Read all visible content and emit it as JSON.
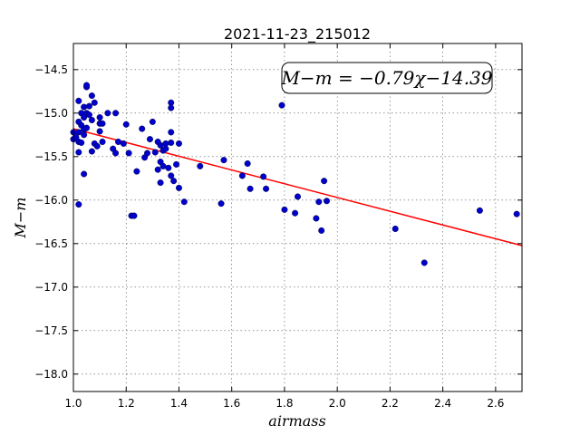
{
  "chart_data": {
    "type": "scatter",
    "title": "2021-11-23_215012",
    "xlabel": "airmass",
    "ylabel": "M−m",
    "annotation": "M−m = −0.79χ−14.39",
    "xlim": [
      1.0,
      2.7
    ],
    "ylim": [
      -18.2,
      -14.2
    ],
    "xticks": [
      "1.0",
      "1.2",
      "1.4",
      "1.6",
      "1.8",
      "2.0",
      "2.2",
      "2.4",
      "2.6"
    ],
    "yticks": [
      "−14.5",
      "−15.0",
      "−15.5",
      "−16.0",
      "−16.5",
      "−17.0",
      "−17.5",
      "−18.0"
    ],
    "grid": true,
    "fit": {
      "slope": -0.79,
      "intercept": -14.39,
      "color": "#ff0000"
    },
    "point_color": "#0000cc",
    "points": [
      [
        1.0,
        -15.22
      ],
      [
        1.0,
        -15.3
      ],
      [
        1.01,
        -15.28
      ],
      [
        1.02,
        -15.1
      ],
      [
        1.02,
        -15.22
      ],
      [
        1.02,
        -15.33
      ],
      [
        1.02,
        -15.45
      ],
      [
        1.02,
        -16.05
      ],
      [
        1.02,
        -14.86
      ],
      [
        1.03,
        -15.0
      ],
      [
        1.03,
        -15.14
      ],
      [
        1.03,
        -15.34
      ],
      [
        1.04,
        -14.93
      ],
      [
        1.04,
        -15.05
      ],
      [
        1.04,
        -15.19
      ],
      [
        1.04,
        -15.25
      ],
      [
        1.04,
        -15.7
      ],
      [
        1.05,
        -14.7
      ],
      [
        1.05,
        -14.68
      ],
      [
        1.05,
        -15.0
      ],
      [
        1.05,
        -15.17
      ],
      [
        1.06,
        -15.02
      ],
      [
        1.06,
        -14.92
      ],
      [
        1.07,
        -14.8
      ],
      [
        1.07,
        -15.08
      ],
      [
        1.07,
        -15.44
      ],
      [
        1.08,
        -14.88
      ],
      [
        1.08,
        -15.35
      ],
      [
        1.09,
        -15.38
      ],
      [
        1.1,
        -15.05
      ],
      [
        1.1,
        -15.12
      ],
      [
        1.1,
        -15.21
      ],
      [
        1.11,
        -15.12
      ],
      [
        1.11,
        -15.33
      ],
      [
        1.13,
        -15.0
      ],
      [
        1.15,
        -15.41
      ],
      [
        1.16,
        -15.0
      ],
      [
        1.16,
        -15.46
      ],
      [
        1.17,
        -15.33
      ],
      [
        1.19,
        -15.35
      ],
      [
        1.2,
        -15.13
      ],
      [
        1.21,
        -15.46
      ],
      [
        1.22,
        -16.18
      ],
      [
        1.23,
        -16.18
      ],
      [
        1.24,
        -15.67
      ],
      [
        1.26,
        -15.18
      ],
      [
        1.27,
        -15.51
      ],
      [
        1.28,
        -15.46
      ],
      [
        1.29,
        -15.3
      ],
      [
        1.3,
        -15.1
      ],
      [
        1.31,
        -15.45
      ],
      [
        1.32,
        -15.65
      ],
      [
        1.32,
        -15.33
      ],
      [
        1.33,
        -15.37
      ],
      [
        1.33,
        -15.56
      ],
      [
        1.33,
        -15.8
      ],
      [
        1.34,
        -15.43
      ],
      [
        1.34,
        -15.61
      ],
      [
        1.35,
        -15.35
      ],
      [
        1.35,
        -15.41
      ],
      [
        1.36,
        -15.63
      ],
      [
        1.37,
        -14.88
      ],
      [
        1.37,
        -14.94
      ],
      [
        1.37,
        -15.22
      ],
      [
        1.37,
        -15.34
      ],
      [
        1.37,
        -15.72
      ],
      [
        1.38,
        -15.78
      ],
      [
        1.39,
        -15.59
      ],
      [
        1.4,
        -15.35
      ],
      [
        1.4,
        -15.86
      ],
      [
        1.42,
        -16.02
      ],
      [
        1.48,
        -15.61
      ],
      [
        1.56,
        -16.04
      ],
      [
        1.57,
        -15.54
      ],
      [
        1.64,
        -15.72
      ],
      [
        1.66,
        -15.58
      ],
      [
        1.67,
        -15.87
      ],
      [
        1.72,
        -15.73
      ],
      [
        1.73,
        -15.87
      ],
      [
        1.79,
        -14.91
      ],
      [
        1.8,
        -16.11
      ],
      [
        1.84,
        -16.15
      ],
      [
        1.85,
        -15.96
      ],
      [
        1.92,
        -16.21
      ],
      [
        1.93,
        -16.02
      ],
      [
        1.94,
        -16.35
      ],
      [
        1.95,
        -15.78
      ],
      [
        1.96,
        -16.01
      ],
      [
        2.22,
        -16.33
      ],
      [
        2.33,
        -16.72
      ],
      [
        2.54,
        -16.12
      ],
      [
        2.68,
        -16.16
      ]
    ]
  }
}
